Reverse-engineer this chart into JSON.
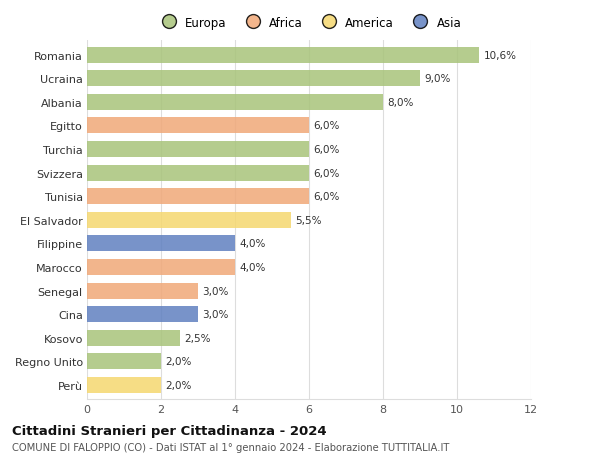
{
  "title": "Cittadini Stranieri per Cittadinanza - 2024",
  "subtitle": "COMUNE DI FALOPPIO (CO) - Dati ISTAT al 1° gennaio 2024 - Elaborazione TUTTITALIA.IT",
  "categories": [
    "Romania",
    "Ucraina",
    "Albania",
    "Egitto",
    "Turchia",
    "Svizzera",
    "Tunisia",
    "El Salvador",
    "Filippine",
    "Marocco",
    "Senegal",
    "Cina",
    "Kosovo",
    "Regno Unito",
    "Perù"
  ],
  "values": [
    10.6,
    9.0,
    8.0,
    6.0,
    6.0,
    6.0,
    6.0,
    5.5,
    4.0,
    4.0,
    3.0,
    3.0,
    2.5,
    2.0,
    2.0
  ],
  "labels": [
    "10,6%",
    "9,0%",
    "8,0%",
    "6,0%",
    "6,0%",
    "6,0%",
    "6,0%",
    "5,5%",
    "4,0%",
    "4,0%",
    "3,0%",
    "3,0%",
    "2,5%",
    "2,0%",
    "2,0%"
  ],
  "colors": [
    "#a8c47a",
    "#a8c47a",
    "#a8c47a",
    "#f0a878",
    "#a8c47a",
    "#a8c47a",
    "#f0a878",
    "#f5d870",
    "#6080c0",
    "#f0a878",
    "#f0a878",
    "#6080c0",
    "#a8c47a",
    "#a8c47a",
    "#f5d870"
  ],
  "legend_names": [
    "Europa",
    "Africa",
    "America",
    "Asia"
  ],
  "legend_colors": [
    "#a8c47a",
    "#f0a878",
    "#f5d870",
    "#6080c0"
  ],
  "xlim": [
    0,
    12
  ],
  "xticks": [
    0,
    2,
    4,
    6,
    8,
    10,
    12
  ],
  "background_color": "#ffffff",
  "grid_color": "#dddddd",
  "bar_height": 0.68
}
